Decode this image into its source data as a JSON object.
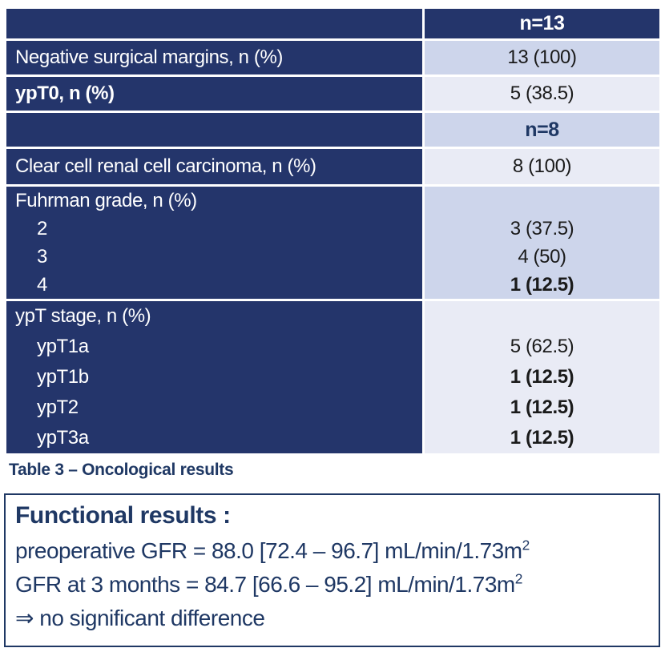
{
  "colors": {
    "navy_fill": "#24356B",
    "navy_text": "#1F3864",
    "band_dark": "#CDD5EB",
    "band_light": "#E9EBF5",
    "value_text": "#1A1A1A",
    "header_text": "#FFFFFF"
  },
  "table": {
    "cohort_headers": {
      "n13": "n=13",
      "n8": "n=8"
    },
    "rows": [
      {
        "label": "Negative surgical margins, n (%)",
        "value": "13 (100)"
      },
      {
        "label": "ypT0, n (%)",
        "value": "5 (38.5)"
      },
      {
        "label": "Clear cell renal cell carcinoma, n (%)",
        "value": "8 (100)"
      },
      {
        "label": "Fuhrman grade, n (%)",
        "items": [
          {
            "label": "2",
            "value": "3 (37.5)"
          },
          {
            "label": "3",
            "value": "4 (50)"
          },
          {
            "label": "4",
            "value": "1 (12.5)"
          }
        ]
      },
      {
        "label": "ypT stage, n (%)",
        "items": [
          {
            "label": "ypT1a",
            "value": "5 (62.5)"
          },
          {
            "label": "ypT1b",
            "value": "1 (12.5)"
          },
          {
            "label": "ypT2",
            "value": "1 (12.5)"
          },
          {
            "label": "ypT3a",
            "value": "1 (12.5)"
          }
        ]
      }
    ]
  },
  "caption": "Table 3 – Oncological results",
  "functional_box": {
    "title": "Functional results :",
    "preop_line": {
      "text": "preoperative GFR = 88.0 [72.4 – 96.7] mL/min/1.73m",
      "sup": "2"
    },
    "gfr3m_line": {
      "text": "GFR at 3 months = 84.7 [66.6 – 95.2] mL/min/1.73m",
      "sup": "2"
    },
    "conclusion_line": "⇒ no significant difference"
  }
}
